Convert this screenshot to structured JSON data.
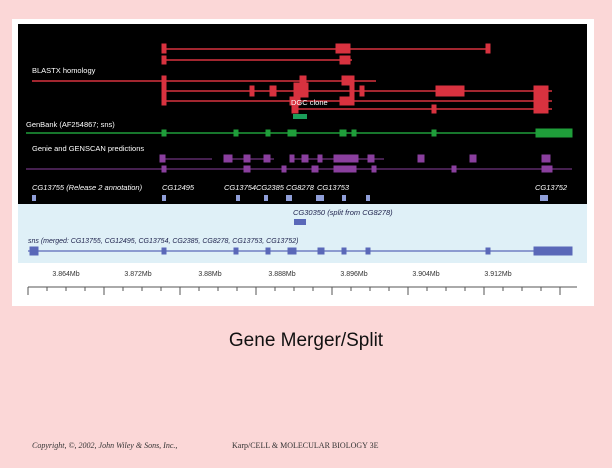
{
  "figure": {
    "track_labels": {
      "blastx": "BLASTX homology",
      "dgc": "DGC clone",
      "genbank": "GenBank (AF254867; sns)",
      "genie": "Genie and GENSCAN predictions",
      "cg_release": "CG13755 (Release 2 annotation)",
      "cg30350": "CG30350 (split from CG8278)",
      "sns_merged": "sns (merged: CG13755, CG12495, CG13754, CG2385, CG8278, CG13753, CG13752)"
    },
    "gene_labels": [
      "CG12495",
      "CG13754",
      "CG2385",
      "CG8278",
      "CG13753",
      "CG13752"
    ],
    "axis_ticks": [
      "3.864Mb",
      "3.872Mb",
      "3.88Mb",
      "3.888Mb",
      "3.896Mb",
      "3.904Mb",
      "3.912Mb"
    ],
    "colors": {
      "background_dark": "#000000",
      "lower_panel": "#dff0f7",
      "blastx": "#d8323f",
      "dgc": "#1a9e5a",
      "genbank": "#1f9e3a",
      "genie": "#8a3f9e",
      "cg": "#8f9ed8",
      "sns": "#5a68b8"
    }
  },
  "caption": "Gene Merger/Split",
  "footer": {
    "copyright": "Copyright, ©, 2002, John Wiley & Sons, Inc.,",
    "book": "Karp/CELL & MOLECULAR BIOLOGY 3E"
  }
}
